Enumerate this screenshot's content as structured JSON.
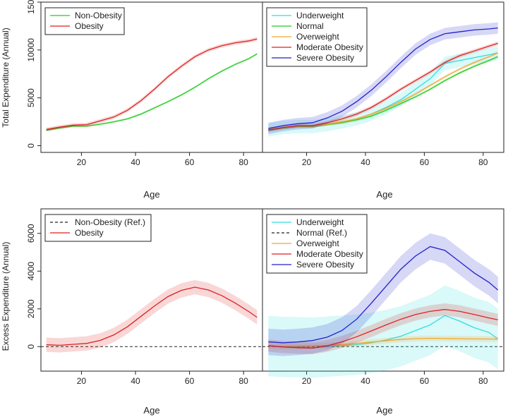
{
  "chart_data": {
    "type": "line",
    "y_labels": {
      "top": "Total Expenditure (Annual)",
      "bottom": "Excess Expenditure (Annual)"
    },
    "x_label": "Age",
    "xlim": [
      5,
      87
    ],
    "x_ticks": [
      20,
      40,
      60,
      80
    ],
    "panels": [
      {
        "id": "total-obesity",
        "ylim": [
          -700,
          15000
        ],
        "y_ticks": [
          0,
          5000,
          10000,
          15000
        ],
        "legend": [
          {
            "name": "Non-Obesity",
            "color": "#22cc22",
            "dash": false
          },
          {
            "name": "Obesity",
            "color": "#dd2222",
            "dash": false
          }
        ],
        "series": [
          {
            "name": "Non-Obesity",
            "color": "#22cc22",
            "band": 120,
            "points": [
              [
                7,
                1600
              ],
              [
                12,
                1850
              ],
              [
                17,
                2050
              ],
              [
                22,
                2050
              ],
              [
                27,
                2250
              ],
              [
                32,
                2500
              ],
              [
                37,
                2800
              ],
              [
                42,
                3300
              ],
              [
                47,
                3950
              ],
              [
                52,
                4600
              ],
              [
                57,
                5300
              ],
              [
                62,
                6100
              ],
              [
                67,
                7000
              ],
              [
                72,
                7800
              ],
              [
                77,
                8500
              ],
              [
                82,
                9100
              ],
              [
                85,
                9600
              ]
            ]
          },
          {
            "name": "Obesity",
            "color": "#dd2222",
            "band": 200,
            "points": [
              [
                7,
                1700
              ],
              [
                12,
                1950
              ],
              [
                17,
                2150
              ],
              [
                22,
                2200
              ],
              [
                27,
                2600
              ],
              [
                32,
                3000
              ],
              [
                37,
                3700
              ],
              [
                42,
                4700
              ],
              [
                47,
                5900
              ],
              [
                52,
                7200
              ],
              [
                57,
                8300
              ],
              [
                62,
                9300
              ],
              [
                67,
                10000
              ],
              [
                72,
                10450
              ],
              [
                77,
                10750
              ],
              [
                82,
                10950
              ],
              [
                85,
                11150
              ]
            ]
          }
        ]
      },
      {
        "id": "total-bmi",
        "ylim": [
          -700,
          15000
        ],
        "y_ticks": [
          0,
          5000,
          10000,
          15000
        ],
        "legend": [
          {
            "name": "Underweight",
            "color": "#33dddd",
            "dash": false
          },
          {
            "name": "Normal",
            "color": "#22cc22",
            "dash": false
          },
          {
            "name": "Overweight",
            "color": "#f0a830",
            "dash": false
          },
          {
            "name": "Moderate Obesity",
            "color": "#dd2222",
            "dash": false
          },
          {
            "name": "Severe Obesity",
            "color": "#2222cc",
            "dash": false
          }
        ],
        "series": [
          {
            "name": "Underweight",
            "color": "#33dddd",
            "band": 700,
            "points": [
              [
                7,
                1650
              ],
              [
                12,
                1900
              ],
              [
                17,
                2000
              ],
              [
                22,
                2000
              ],
              [
                27,
                2200
              ],
              [
                32,
                2500
              ],
              [
                37,
                2800
              ],
              [
                42,
                3300
              ],
              [
                47,
                4000
              ],
              [
                52,
                4800
              ],
              [
                57,
                5900
              ],
              [
                62,
                7000
              ],
              [
                67,
                8600
              ],
              [
                72,
                8900
              ],
              [
                77,
                9200
              ],
              [
                82,
                9500
              ],
              [
                85,
                9700
              ]
            ]
          },
          {
            "name": "Normal",
            "color": "#22cc22",
            "band": 150,
            "points": [
              [
                7,
                1600
              ],
              [
                12,
                1850
              ],
              [
                17,
                2000
              ],
              [
                22,
                2000
              ],
              [
                27,
                2200
              ],
              [
                32,
                2400
              ],
              [
                37,
                2700
              ],
              [
                42,
                3100
              ],
              [
                47,
                3700
              ],
              [
                52,
                4400
              ],
              [
                57,
                5100
              ],
              [
                62,
                5900
              ],
              [
                67,
                6800
              ],
              [
                72,
                7600
              ],
              [
                77,
                8300
              ],
              [
                82,
                8900
              ],
              [
                85,
                9300
              ]
            ]
          },
          {
            "name": "Overweight",
            "color": "#f0a830",
            "band": 150,
            "points": [
              [
                7,
                1650
              ],
              [
                12,
                1900
              ],
              [
                17,
                2050
              ],
              [
                22,
                2050
              ],
              [
                27,
                2250
              ],
              [
                32,
                2500
              ],
              [
                37,
                2800
              ],
              [
                42,
                3300
              ],
              [
                47,
                3900
              ],
              [
                52,
                4600
              ],
              [
                57,
                5400
              ],
              [
                62,
                6300
              ],
              [
                67,
                7200
              ],
              [
                72,
                8000
              ],
              [
                77,
                8700
              ],
              [
                82,
                9300
              ],
              [
                85,
                9700
              ]
            ]
          },
          {
            "name": "Moderate Obesity",
            "color": "#dd2222",
            "band": 200,
            "points": [
              [
                7,
                1650
              ],
              [
                12,
                1900
              ],
              [
                17,
                2100
              ],
              [
                22,
                2100
              ],
              [
                27,
                2400
              ],
              [
                32,
                2800
              ],
              [
                37,
                3300
              ],
              [
                42,
                4000
              ],
              [
                47,
                4900
              ],
              [
                52,
                5900
              ],
              [
                57,
                6800
              ],
              [
                62,
                7700
              ],
              [
                67,
                8700
              ],
              [
                72,
                9400
              ],
              [
                77,
                9900
              ],
              [
                82,
                10400
              ],
              [
                85,
                10700
              ]
            ]
          },
          {
            "name": "Severe Obesity",
            "color": "#2222cc",
            "band": 600,
            "points": [
              [
                7,
                1800
              ],
              [
                12,
                2100
              ],
              [
                17,
                2300
              ],
              [
                22,
                2400
              ],
              [
                27,
                2900
              ],
              [
                32,
                3600
              ],
              [
                37,
                4600
              ],
              [
                42,
                5800
              ],
              [
                47,
                7200
              ],
              [
                52,
                8700
              ],
              [
                57,
                10100
              ],
              [
                62,
                11100
              ],
              [
                67,
                11700
              ],
              [
                72,
                11900
              ],
              [
                77,
                12100
              ],
              [
                82,
                12200
              ],
              [
                85,
                12300
              ]
            ]
          }
        ]
      },
      {
        "id": "excess-obesity",
        "ylim": [
          -1300,
          7300
        ],
        "y_ticks": [
          0,
          2000,
          4000,
          6000
        ],
        "legend": [
          {
            "name": "Non-Obesity (Ref.)",
            "color": "#222222",
            "dash": true
          },
          {
            "name": "Obesity",
            "color": "#dd2222",
            "dash": false
          }
        ],
        "series": [
          {
            "name": "Obesity",
            "color": "#dd2222",
            "band": 380,
            "points": [
              [
                7,
                100
              ],
              [
                12,
                70
              ],
              [
                17,
                120
              ],
              [
                22,
                170
              ],
              [
                27,
                330
              ],
              [
                32,
                620
              ],
              [
                37,
                1050
              ],
              [
                42,
                1600
              ],
              [
                47,
                2150
              ],
              [
                52,
                2650
              ],
              [
                57,
                2980
              ],
              [
                62,
                3150
              ],
              [
                67,
                3000
              ],
              [
                72,
                2700
              ],
              [
                77,
                2300
              ],
              [
                82,
                1850
              ],
              [
                85,
                1550
              ]
            ]
          }
        ]
      },
      {
        "id": "excess-bmi",
        "ylim": [
          -1300,
          7300
        ],
        "y_ticks": [
          0,
          2000,
          4000,
          6000
        ],
        "legend": [
          {
            "name": "Underweight",
            "color": "#33dddd",
            "dash": false
          },
          {
            "name": "Normal (Ref.)",
            "color": "#222222",
            "dash": true
          },
          {
            "name": "Overweight",
            "color": "#f0a830",
            "dash": false
          },
          {
            "name": "Moderate Obesity",
            "color": "#dd2222",
            "dash": false
          },
          {
            "name": "Severe Obesity",
            "color": "#2222cc",
            "dash": false
          }
        ],
        "series": [
          {
            "name": "Underweight",
            "color": "#33dddd",
            "band": 1600,
            "points": [
              [
                7,
                30
              ],
              [
                12,
                -20
              ],
              [
                17,
                -30
              ],
              [
                22,
                -60
              ],
              [
                27,
                0
              ],
              [
                32,
                50
              ],
              [
                37,
                100
              ],
              [
                42,
                200
              ],
              [
                47,
                350
              ],
              [
                52,
                550
              ],
              [
                57,
                850
              ],
              [
                62,
                1150
              ],
              [
                67,
                1650
              ],
              [
                72,
                1350
              ],
              [
                77,
                1000
              ],
              [
                82,
                750
              ],
              [
                85,
                400
              ]
            ]
          },
          {
            "name": "Overweight",
            "color": "#f0a830",
            "band": 150,
            "points": [
              [
                7,
                20
              ],
              [
                12,
                10
              ],
              [
                17,
                20
              ],
              [
                22,
                30
              ],
              [
                27,
                60
              ],
              [
                32,
                110
              ],
              [
                37,
                170
              ],
              [
                42,
                240
              ],
              [
                47,
                310
              ],
              [
                52,
                380
              ],
              [
                57,
                420
              ],
              [
                62,
                440
              ],
              [
                67,
                430
              ],
              [
                72,
                420
              ],
              [
                77,
                410
              ],
              [
                82,
                400
              ],
              [
                85,
                400
              ]
            ]
          },
          {
            "name": "Moderate Obesity",
            "color": "#dd2222",
            "band": 320,
            "points": [
              [
                7,
                50
              ],
              [
                12,
                -20
              ],
              [
                17,
                -60
              ],
              [
                22,
                -80
              ],
              [
                27,
                40
              ],
              [
                32,
                250
              ],
              [
                37,
                520
              ],
              [
                42,
                830
              ],
              [
                47,
                1150
              ],
              [
                52,
                1450
              ],
              [
                57,
                1700
              ],
              [
                62,
                1870
              ],
              [
                67,
                1970
              ],
              [
                72,
                1870
              ],
              [
                77,
                1700
              ],
              [
                82,
                1520
              ],
              [
                85,
                1420
              ]
            ]
          },
          {
            "name": "Severe Obesity",
            "color": "#2222cc",
            "band": 700,
            "points": [
              [
                7,
                250
              ],
              [
                12,
                200
              ],
              [
                17,
                250
              ],
              [
                22,
                320
              ],
              [
                27,
                500
              ],
              [
                32,
                850
              ],
              [
                37,
                1450
              ],
              [
                42,
                2300
              ],
              [
                47,
                3200
              ],
              [
                52,
                4100
              ],
              [
                57,
                4800
              ],
              [
                62,
                5300
              ],
              [
                67,
                5100
              ],
              [
                72,
                4500
              ],
              [
                77,
                3900
              ],
              [
                82,
                3400
              ],
              [
                85,
                3000
              ]
            ]
          }
        ]
      }
    ]
  }
}
